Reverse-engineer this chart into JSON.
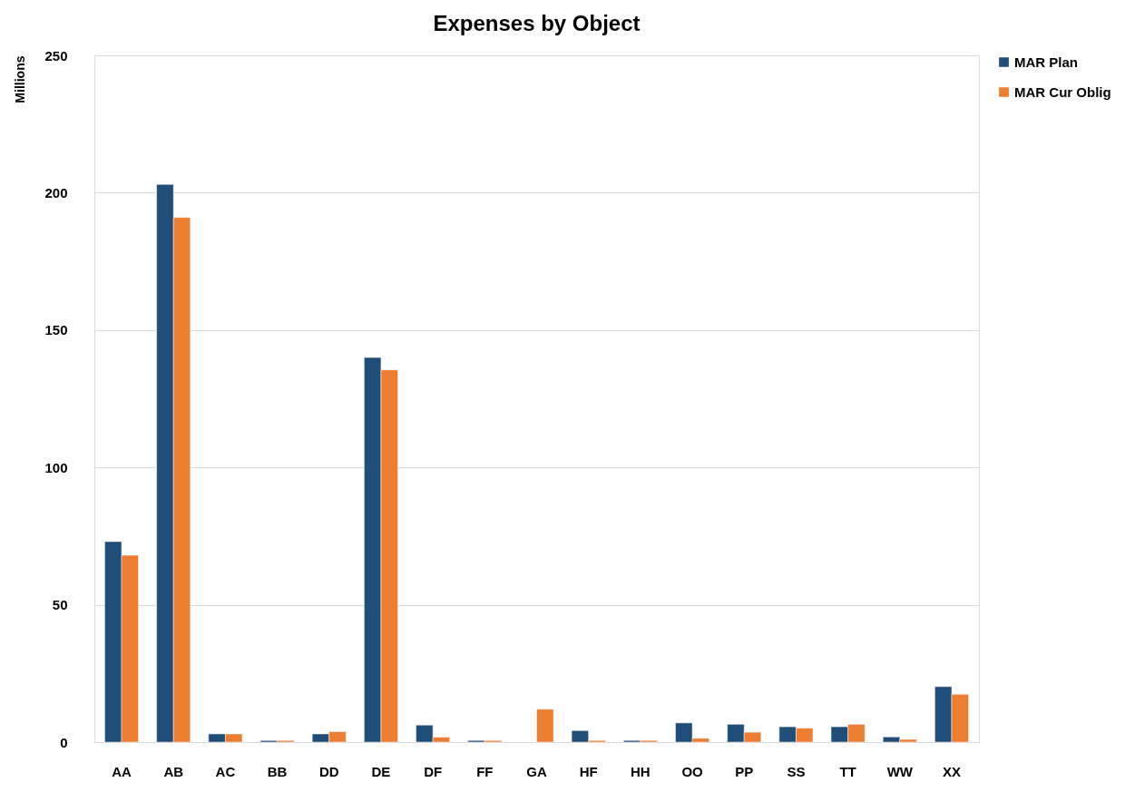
{
  "chart_data": {
    "type": "bar",
    "title": "Expenses by Object",
    "ylabel": "Millions",
    "categories": [
      "AA",
      "AB",
      "AC",
      "BB",
      "DD",
      "DE",
      "DF",
      "FF",
      "GA",
      "HF",
      "HH",
      "OO",
      "PP",
      "SS",
      "TT",
      "WW",
      "XX"
    ],
    "series": [
      {
        "name": "MAR Plan",
        "color": "#1f4e79",
        "values": [
          73,
          203,
          3,
          0.6,
          3,
          140,
          6.2,
          0.6,
          null,
          4.2,
          0.6,
          7,
          6.5,
          5.6,
          5.6,
          1.9,
          20.2
        ]
      },
      {
        "name": "MAR Cur Oblig",
        "color": "#ed7d31",
        "values": [
          68,
          191,
          3,
          0.6,
          3.8,
          135.5,
          1.8,
          0.6,
          12,
          0.6,
          0.6,
          1.4,
          3.6,
          5.1,
          6.5,
          1,
          17.4
        ]
      }
    ],
    "ylim": [
      0,
      250
    ],
    "yticks": [
      0,
      50,
      100,
      150,
      200,
      250
    ],
    "grid": "y",
    "legend": "right"
  }
}
